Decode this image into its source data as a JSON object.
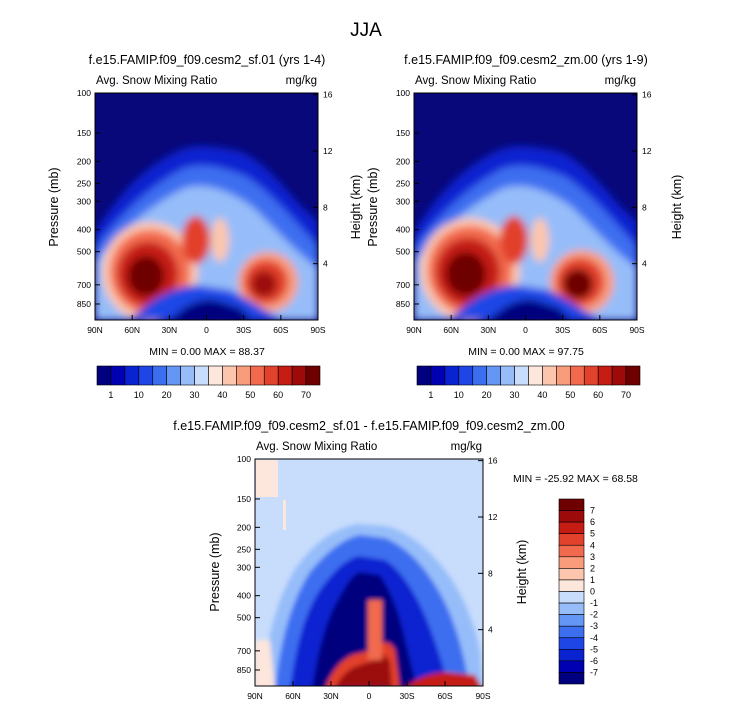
{
  "figure": {
    "title": "JJA",
    "diverging_colors": [
      "#00007f",
      "#0000b2",
      "#0a23d0",
      "#1e46e6",
      "#3c6ef0",
      "#6496f5",
      "#96bdf9",
      "#c8dcfc",
      "#e2ecfd",
      "#fde6dc",
      "#fcc6ae",
      "#f99c7c",
      "#f26a4e",
      "#e2412b",
      "#c51d14",
      "#9c0a0a",
      "#6e0000"
    ],
    "base_fill": "#08087a"
  },
  "chart_data": [
    {
      "type": "heatmap",
      "id": "panel-1",
      "title": "f.e15.FAMIP.f09_f09.cesm2_sf.01 (yrs 1-4)",
      "left_string": "Avg. Snow Mixing Ratio",
      "right_string": "mg/kg",
      "xlabel": "",
      "ylabel": "Pressure (mb)",
      "ylabel_right": "Height (km)",
      "x_ticks": [
        "90N",
        "60N",
        "30N",
        "0",
        "30S",
        "60S",
        "90S"
      ],
      "y_ticks": [
        "100",
        "150",
        "200",
        "250",
        "300",
        "400",
        "500",
        "700",
        "850"
      ],
      "y_ticks_right": [
        "16",
        "12",
        "8",
        "4"
      ],
      "x_range": [
        90,
        -90
      ],
      "y_range_mb": [
        100,
        1000
      ],
      "stats": "MIN =  0.00   MAX =  88.37",
      "min": 0.0,
      "max": 88.37,
      "colorbar_ticks": [
        "1",
        "10",
        "20",
        "30",
        "40",
        "50",
        "60",
        "70"
      ]
    },
    {
      "type": "heatmap",
      "id": "panel-2",
      "title": "f.e15.FAMIP.f09_f09.cesm2_zm.00 (yrs 1-9)",
      "left_string": "Avg. Snow Mixing Ratio",
      "right_string": "mg/kg",
      "xlabel": "",
      "ylabel": "Pressure (mb)",
      "ylabel_right": "Height (km)",
      "x_ticks": [
        "90N",
        "60N",
        "30N",
        "0",
        "30S",
        "60S",
        "90S"
      ],
      "y_ticks": [
        "100",
        "150",
        "200",
        "250",
        "300",
        "400",
        "500",
        "700",
        "850"
      ],
      "y_ticks_right": [
        "16",
        "12",
        "8",
        "4"
      ],
      "x_range": [
        90,
        -90
      ],
      "y_range_mb": [
        100,
        1000
      ],
      "stats": "MIN =  0.00   MAX =  97.75",
      "min": 0.0,
      "max": 97.75,
      "colorbar_ticks": [
        "1",
        "10",
        "20",
        "30",
        "40",
        "50",
        "60",
        "70"
      ]
    },
    {
      "type": "heatmap",
      "id": "panel-3",
      "title": "f.e15.FAMIP.f09_f09.cesm2_sf.01 - f.e15.FAMIP.f09_f09.cesm2_zm.00",
      "left_string": "Avg. Snow Mixing Ratio",
      "right_string": "mg/kg",
      "xlabel": "",
      "ylabel": "Pressure (mb)",
      "ylabel_right": "Height (km)",
      "x_ticks": [
        "90N",
        "60N",
        "30N",
        "0",
        "30S",
        "60S",
        "90S"
      ],
      "y_ticks": [
        "100",
        "150",
        "200",
        "250",
        "300",
        "400",
        "500",
        "700",
        "850"
      ],
      "y_ticks_right": [
        "16",
        "12",
        "8",
        "4"
      ],
      "x_range": [
        90,
        -90
      ],
      "y_range_mb": [
        100,
        1000
      ],
      "stats": "MIN = -25.92   MAX =  68.58",
      "min": -25.92,
      "max": 68.58,
      "colorbar_ticks": [
        "7",
        "6",
        "5",
        "4",
        "3",
        "2",
        "1",
        "0",
        "-1",
        "-2",
        "-3",
        "-4",
        "-5",
        "-6",
        "-7"
      ]
    }
  ]
}
